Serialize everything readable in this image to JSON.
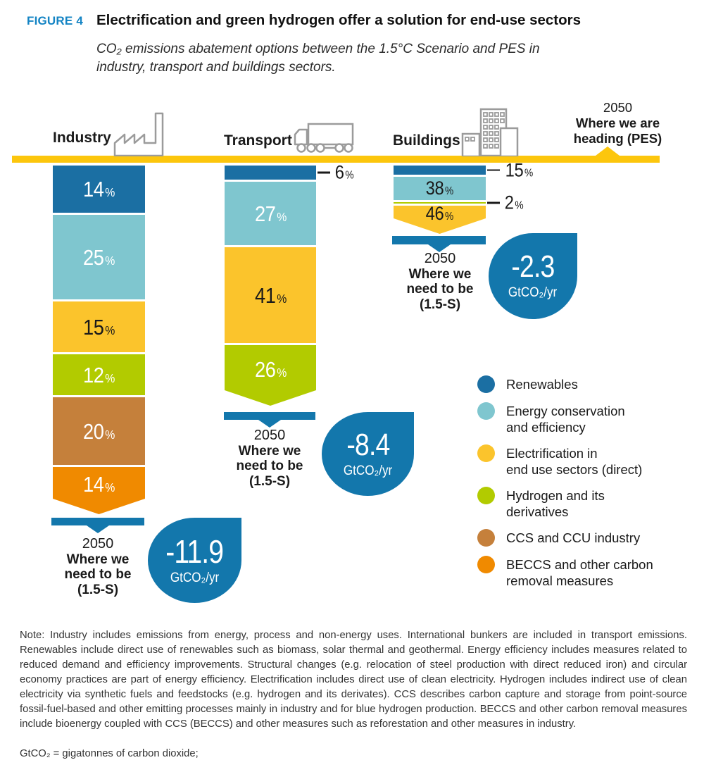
{
  "figure": {
    "tag": "FIGURE 4",
    "title": "Electrification and green hydrogen offer a solution for end-use sectors",
    "subtitle": "CO₂ emissions abatement options between the 1.5°C Scenario and PES in industry, transport and buildings sectors."
  },
  "colors": {
    "renewables": "#1b6fa3",
    "efficiency": "#7fc6cf",
    "electrification": "#fbc42c",
    "hydrogen": "#b2cb00",
    "ccs": "#c5803b",
    "beccs": "#f08a00",
    "baseline_yellow": "#fcc60d",
    "marker_blue": "#1377ac",
    "figure_tag_blue": "#1484c4",
    "icon_gray": "#9b9b9b"
  },
  "heading_pes": {
    "year": "2050",
    "line1": "Where we are",
    "line2": "heading (PES)"
  },
  "chart_data": {
    "type": "bar",
    "stacked": true,
    "orientation": "hanging-vertical",
    "unit": "%",
    "sectors": [
      {
        "name": "Industry",
        "icon": "factory-icon",
        "segments": [
          {
            "category": "Renewables",
            "value": 14,
            "label": "14",
            "color": "#1b6fa3",
            "text": "light",
            "placement": "inside",
            "arrow": false
          },
          {
            "category": "Energy conservation and efficiency",
            "value": 25,
            "label": "25",
            "color": "#7fc6cf",
            "text": "light",
            "placement": "inside",
            "arrow": false
          },
          {
            "category": "Electrification in end use sectors (direct)",
            "value": 15,
            "label": "15",
            "color": "#fbc42c",
            "text": "dark",
            "placement": "inside",
            "arrow": false
          },
          {
            "category": "Hydrogen and its derivatives",
            "value": 12,
            "label": "12",
            "color": "#b2cb00",
            "text": "light",
            "placement": "inside",
            "arrow": false
          },
          {
            "category": "CCS and CCU industry",
            "value": 20,
            "label": "20",
            "color": "#c5803b",
            "text": "light",
            "placement": "inside",
            "arrow": false
          },
          {
            "category": "BECCS and other carbon removal measures",
            "value": 14,
            "label": "14",
            "color": "#f08a00",
            "text": "light",
            "placement": "inside",
            "arrow": true
          }
        ],
        "target": {
          "year": "2050",
          "line1": "Where we",
          "line2": "need to be",
          "line3": "(1.5-S)",
          "reduction_value": "-11.9",
          "reduction_unit": "GtCO₂/yr"
        }
      },
      {
        "name": "Transport",
        "icon": "truck-icon",
        "segments": [
          {
            "category": "Renewables",
            "value": 6,
            "label": "6",
            "color": "#1b6fa3",
            "text": "light",
            "placement": "outside",
            "arrow": false
          },
          {
            "category": "Energy conservation and efficiency",
            "value": 27,
            "label": "27",
            "color": "#7fc6cf",
            "text": "light",
            "placement": "inside",
            "arrow": false
          },
          {
            "category": "Electrification in end use sectors (direct)",
            "value": 41,
            "label": "41",
            "color": "#fbc42c",
            "text": "dark",
            "placement": "inside",
            "arrow": false
          },
          {
            "category": "Hydrogen and its derivatives",
            "value": 26,
            "label": "26",
            "color": "#b2cb00",
            "text": "light",
            "placement": "inside",
            "arrow": true
          }
        ],
        "target": {
          "year": "2050",
          "line1": "Where we",
          "line2": "need to be",
          "line3": "(1.5-S)",
          "reduction_value": "-8.4",
          "reduction_unit": "GtCO₂/yr"
        }
      },
      {
        "name": "Buildings",
        "icon": "buildings-icon",
        "segments": [
          {
            "category": "Renewables",
            "value": 15,
            "label": "15",
            "color": "#1b6fa3",
            "text": "light",
            "placement": "outside",
            "arrow": false
          },
          {
            "category": "Energy conservation and efficiency",
            "value": 38,
            "label": "38",
            "color": "#7fc6cf",
            "text": "dark",
            "placement": "inside",
            "arrow": false
          },
          {
            "category": "Hydrogen and its derivatives",
            "value": 2,
            "label": "2",
            "color": "#b2cb00",
            "text": "dark",
            "placement": "outside",
            "arrow": false
          },
          {
            "category": "Electrification in end use sectors (direct)",
            "value": 46,
            "label": "46",
            "color": "#fbc42c",
            "text": "dark",
            "placement": "inside",
            "arrow": true
          }
        ],
        "target": {
          "year": "2050",
          "line1": "Where we",
          "line2": "need to be",
          "line3": "(1.5-S)",
          "reduction_value": "-2.3",
          "reduction_unit": "GtCO₂/yr"
        }
      }
    ],
    "legend": [
      {
        "label": "Renewables",
        "color": "#1b6fa3"
      },
      {
        "label": "Energy conservation\nand efficiency",
        "color": "#7fc6cf"
      },
      {
        "label": "Electrification in\nend use sectors (direct)",
        "color": "#fbc42c"
      },
      {
        "label": "Hydrogen and its\nderivatives",
        "color": "#b2cb00"
      },
      {
        "label": "CCS and CCU industry",
        "color": "#c5803b"
      },
      {
        "label": "BECCS and other carbon\nremoval measures",
        "color": "#f08a00"
      }
    ]
  },
  "note": "Note: Industry includes emissions from energy, process and non-energy uses. International bunkers are included in transport emissions. Renewables include direct use of renewables such as biomass, solar thermal and geothermal. Energy efficiency includes measures related to reduced demand and efficiency improvements. Structural changes (e.g. relocation of steel production with direct reduced iron) and circular economy practices are part of energy efficiency. Electrification includes direct use of clean electricity. Hydrogen includes indirect use of clean electricity via synthetic fuels and feedstocks (e.g. hydrogen and its derivates). CCS describes carbon capture and storage from point-source fossil-fuel-based and other emitting processes mainly in industry and for blue hydrogen production. BECCS and other carbon removal measures include bioenergy coupled with CCS (BECCS) and other measures such as reforestation and other measures in industry.",
  "footnote": "GtCO₂ = gigatonnes of carbon dioxide;"
}
